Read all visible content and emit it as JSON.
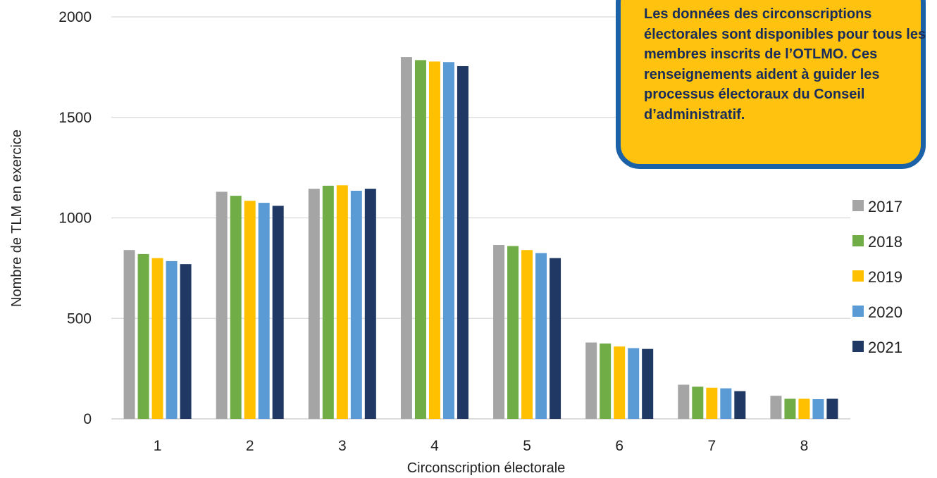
{
  "chart_data": {
    "type": "bar",
    "title": "",
    "xlabel": "Circonscription électorale",
    "ylabel": "Nombre de TLM en exercice",
    "ylim": [
      0,
      2000
    ],
    "yticks": [
      0,
      500,
      1000,
      1500,
      2000
    ],
    "grid": true,
    "legend_position": "right",
    "categories": [
      "1",
      "2",
      "3",
      "4",
      "5",
      "6",
      "7",
      "8"
    ],
    "series": [
      {
        "name": "2017",
        "color": "#a5a5a5",
        "values": [
          840,
          1130,
          1145,
          1800,
          865,
          380,
          170,
          115
        ]
      },
      {
        "name": "2018",
        "color": "#70ad47",
        "values": [
          820,
          1110,
          1160,
          1785,
          860,
          375,
          160,
          100
        ]
      },
      {
        "name": "2019",
        "color": "#ffc000",
        "values": [
          800,
          1085,
          1162,
          1778,
          840,
          360,
          155,
          100
        ]
      },
      {
        "name": "2020",
        "color": "#5b9bd5",
        "values": [
          785,
          1075,
          1135,
          1775,
          825,
          352,
          152,
          98
        ]
      },
      {
        "name": "2021",
        "color": "#1f3864",
        "values": [
          770,
          1060,
          1145,
          1755,
          800,
          348,
          138,
          100
        ]
      }
    ],
    "annotation": "Les données des circonscriptions électorales sont disponibles pour tous les membres inscrits de l’OTLMO. Ces renseignements aident à guider les processus électoraux du Conseil d’administratif."
  }
}
